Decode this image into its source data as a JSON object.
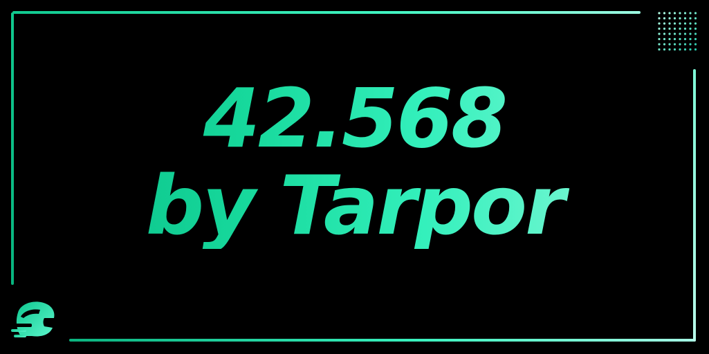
{
  "headline": {
    "line1": "42.568",
    "line2": "by Tarpor"
  },
  "colors": {
    "background": "#000000",
    "accent_dark": "#06b882",
    "accent_mid": "#34f0bc",
    "accent_light": "#9efbe1"
  },
  "icons": {
    "logo": "helmet-logo-icon",
    "decoration": "dot-grid-icon"
  }
}
